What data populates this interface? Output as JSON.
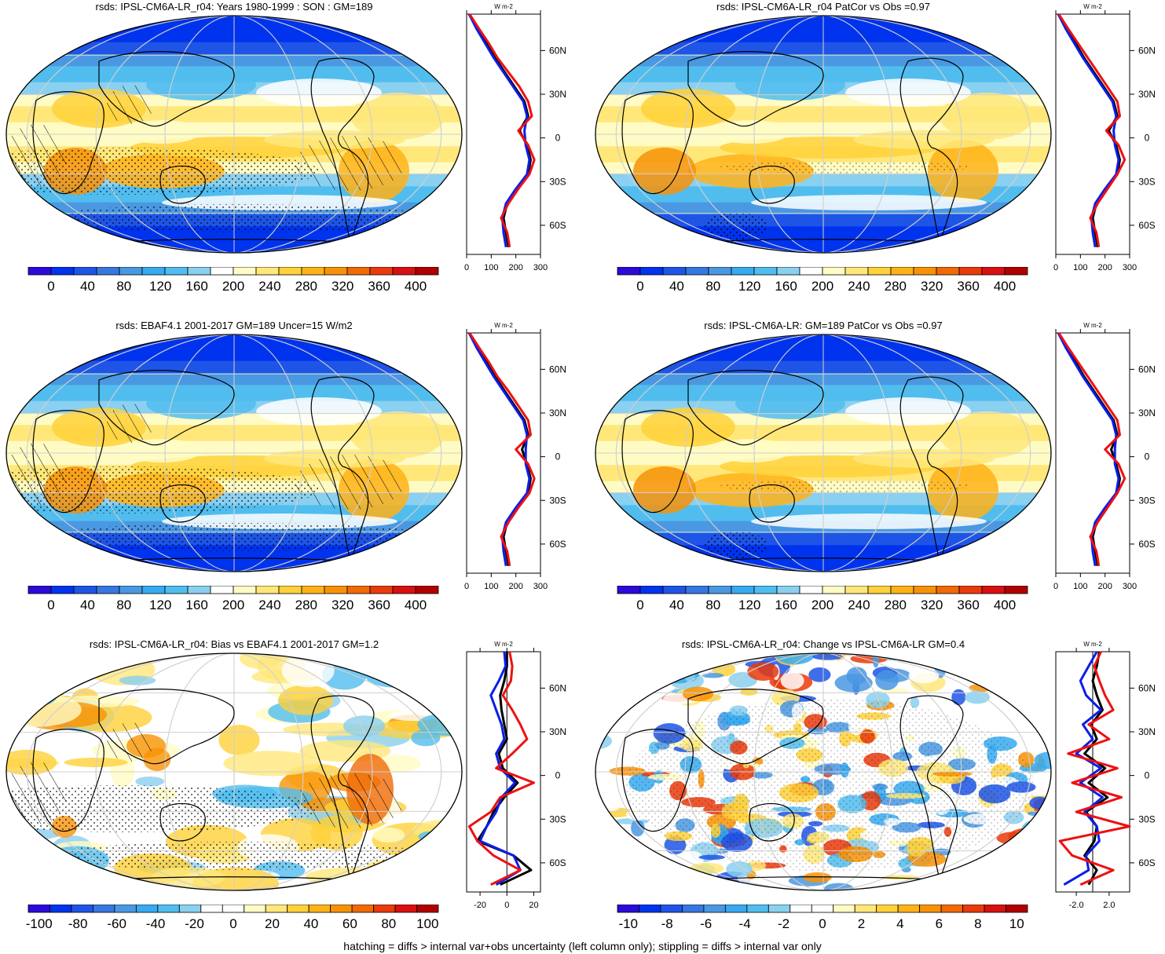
{
  "colors": {
    "main_scale": [
      "#2a0bd9",
      "#0033ee",
      "#1f55e6",
      "#3777e0",
      "#4a98e2",
      "#37aaf0",
      "#51bdef",
      "#8ad0f0",
      "#ffffff",
      "#fffbc4",
      "#ffe77a",
      "#ffd13a",
      "#ffb218",
      "#f79208",
      "#f06a06",
      "#ea3a0c",
      "#d81010",
      "#b00000"
    ],
    "diff_scale": [
      "#2a0bd9",
      "#0033ee",
      "#1f55e6",
      "#3777e0",
      "#4a98e2",
      "#37aaf0",
      "#51bdef",
      "#8ad0f0",
      "#ffffff",
      "#ffffff",
      "#fffbc4",
      "#ffe77a",
      "#ffd13a",
      "#ffb218",
      "#f79208",
      "#f06a06",
      "#ea3a0c",
      "#d81010",
      "#b00000"
    ],
    "model_line": "#000000",
    "obs_line": "#0a1ee8",
    "other_line": "#ee1111"
  },
  "footer": "hatching = diffs > internal var+obs uncertainty (left column only); stippling = diffs > internal var only",
  "panels": [
    {
      "title": "rsds: IPSL-CM6A-LR_r04: Years 1980-1999 : SON : GM=189",
      "colorbar_labels": [
        "0",
        "40",
        "80",
        "120",
        "160",
        "200",
        "240",
        "280",
        "320",
        "360",
        "400"
      ],
      "kind": "main",
      "map_style": "hatched"
    },
    {
      "title": "rsds: IPSL-CM6A-LR_r04 PatCor vs Obs =0.97",
      "colorbar_labels": [
        "0",
        "40",
        "80",
        "120",
        "160",
        "200",
        "240",
        "280",
        "320",
        "360",
        "400"
      ],
      "kind": "main",
      "map_style": "smooth"
    },
    {
      "title": "rsds: EBAF4.1 2001-2017 GM=189 Uncer=15 W/m2",
      "colorbar_labels": [
        "0",
        "40",
        "80",
        "120",
        "160",
        "200",
        "240",
        "280",
        "320",
        "360",
        "400"
      ],
      "kind": "main",
      "map_style": "hatched"
    },
    {
      "title": "rsds: IPSL-CM6A-LR: GM=189 PatCor vs Obs =0.97",
      "colorbar_labels": [
        "0",
        "40",
        "80",
        "120",
        "160",
        "200",
        "240",
        "280",
        "320",
        "360",
        "400"
      ],
      "kind": "main",
      "map_style": "smooth"
    },
    {
      "title": "rsds: IPSL-CM6A-LR_r04: Bias vs EBAF4.1 2001-2017  GM=1.2",
      "colorbar_labels": [
        "-100",
        "-80",
        "-60",
        "-40",
        "-20",
        "0",
        "20",
        "40",
        "60",
        "80",
        "100"
      ],
      "kind": "diff",
      "map_style": "bias"
    },
    {
      "title": "rsds: IPSL-CM6A-LR_r04: Change vs IPSL-CM6A-LR GM=0.4",
      "colorbar_labels": [
        "-10",
        "-8",
        "-6",
        "-4",
        "-2",
        "0",
        "2",
        "4",
        "6",
        "8",
        "10"
      ],
      "kind": "diff",
      "map_style": "change"
    }
  ],
  "chart_data": [
    {
      "type": "line",
      "panel": 0,
      "xlabel": "W m-2",
      "x_ticks": [
        "0",
        "100",
        "200",
        "300"
      ],
      "xlim": [
        0,
        300
      ],
      "ylim": [
        -80,
        85
      ],
      "y_ticks": [
        "60N",
        "30N",
        "0",
        "30S",
        "60S"
      ],
      "lat": [
        85,
        75,
        65,
        55,
        45,
        35,
        25,
        15,
        5,
        -5,
        -15,
        -25,
        -35,
        -45,
        -55,
        -65,
        -75
      ],
      "series": [
        {
          "name": "model",
          "color": "#000000",
          "values": [
            10,
            45,
            80,
            115,
            155,
            195,
            235,
            250,
            215,
            245,
            260,
            250,
            205,
            165,
            150,
            160,
            170
          ]
        },
        {
          "name": "obs",
          "color": "#0a1ee8",
          "values": [
            10,
            40,
            75,
            110,
            150,
            190,
            230,
            245,
            235,
            240,
            255,
            245,
            200,
            160,
            145,
            150,
            160
          ]
        },
        {
          "name": "other",
          "color": "#ee1111",
          "values": [
            12,
            50,
            90,
            125,
            170,
            215,
            250,
            265,
            210,
            250,
            275,
            255,
            210,
            170,
            140,
            165,
            175
          ]
        }
      ]
    },
    {
      "type": "line",
      "panel": 1,
      "xlabel": "W m-2",
      "x_ticks": [
        "0",
        "100",
        "200",
        "300"
      ],
      "xlim": [
        0,
        300
      ],
      "ylim": [
        -80,
        85
      ],
      "y_ticks": [
        "60N",
        "30N",
        "0",
        "30S",
        "60S"
      ],
      "lat": [
        85,
        75,
        65,
        55,
        45,
        35,
        25,
        15,
        5,
        -5,
        -15,
        -25,
        -35,
        -45,
        -55,
        -65,
        -75
      ],
      "series": [
        {
          "name": "model",
          "color": "#000000",
          "values": [
            10,
            45,
            80,
            115,
            155,
            195,
            235,
            250,
            215,
            245,
            260,
            250,
            205,
            165,
            150,
            160,
            170
          ]
        },
        {
          "name": "obs",
          "color": "#0a1ee8",
          "values": [
            10,
            40,
            75,
            110,
            150,
            190,
            230,
            245,
            235,
            240,
            255,
            245,
            200,
            160,
            145,
            150,
            160
          ]
        },
        {
          "name": "other",
          "color": "#ee1111",
          "values": [
            12,
            50,
            90,
            130,
            170,
            210,
            250,
            260,
            205,
            255,
            280,
            250,
            210,
            170,
            140,
            165,
            175
          ]
        }
      ]
    },
    {
      "type": "line",
      "panel": 2,
      "xlabel": "W m-2",
      "x_ticks": [
        "0",
        "100",
        "200",
        "300"
      ],
      "xlim": [
        0,
        300
      ],
      "ylim": [
        -80,
        85
      ],
      "y_ticks": [
        "60N",
        "30N",
        "0",
        "30S",
        "60S"
      ],
      "lat": [
        85,
        75,
        65,
        55,
        45,
        35,
        25,
        15,
        5,
        -5,
        -15,
        -25,
        -35,
        -45,
        -55,
        -65,
        -75
      ],
      "series": [
        {
          "name": "model",
          "color": "#000000",
          "values": [
            10,
            45,
            80,
            115,
            155,
            195,
            235,
            250,
            225,
            245,
            260,
            250,
            205,
            165,
            150,
            160,
            170
          ]
        },
        {
          "name": "obs",
          "color": "#0a1ee8",
          "values": [
            10,
            40,
            75,
            110,
            150,
            190,
            230,
            245,
            240,
            240,
            255,
            245,
            200,
            160,
            145,
            150,
            160
          ]
        },
        {
          "name": "other",
          "color": "#ee1111",
          "values": [
            12,
            50,
            90,
            125,
            170,
            210,
            250,
            260,
            200,
            250,
            275,
            255,
            210,
            170,
            140,
            165,
            175
          ]
        }
      ]
    },
    {
      "type": "line",
      "panel": 3,
      "xlabel": "W m-2",
      "x_ticks": [
        "0",
        "100",
        "200",
        "300"
      ],
      "xlim": [
        0,
        300
      ],
      "ylim": [
        -80,
        85
      ],
      "y_ticks": [
        "60N",
        "30N",
        "0",
        "30S",
        "60S"
      ],
      "lat": [
        85,
        75,
        65,
        55,
        45,
        35,
        25,
        15,
        5,
        -5,
        -15,
        -25,
        -35,
        -45,
        -55,
        -65,
        -75
      ],
      "series": [
        {
          "name": "model",
          "color": "#000000",
          "values": [
            10,
            45,
            80,
            115,
            155,
            195,
            235,
            250,
            225,
            245,
            260,
            250,
            205,
            165,
            150,
            160,
            170
          ]
        },
        {
          "name": "obs",
          "color": "#0a1ee8",
          "values": [
            10,
            40,
            75,
            110,
            150,
            190,
            230,
            245,
            240,
            240,
            255,
            245,
            200,
            160,
            145,
            150,
            160
          ]
        },
        {
          "name": "other",
          "color": "#ee1111",
          "values": [
            12,
            50,
            90,
            130,
            170,
            210,
            250,
            260,
            200,
            255,
            280,
            250,
            210,
            170,
            140,
            165,
            175
          ]
        }
      ]
    },
    {
      "type": "line",
      "panel": 4,
      "xlabel": "W m-2",
      "x_ticks": [
        "-20",
        "0",
        "20"
      ],
      "xlim": [
        -30,
        25
      ],
      "ylim": [
        -80,
        85
      ],
      "y_ticks": [
        "60N",
        "30N",
        "0",
        "30S",
        "60S"
      ],
      "lat": [
        85,
        75,
        65,
        55,
        45,
        35,
        25,
        15,
        5,
        -5,
        -15,
        -25,
        -35,
        -45,
        -55,
        -65,
        -75
      ],
      "series": [
        {
          "name": "model",
          "color": "#000000",
          "values": [
            0,
            0,
            -2,
            -5,
            -4,
            -2,
            0,
            -6,
            -3,
            8,
            -2,
            -10,
            -15,
            -22,
            5,
            18,
            -5
          ]
        },
        {
          "name": "obs",
          "color": "#0a1ee8",
          "values": [
            -2,
            -1,
            -6,
            -12,
            -8,
            -4,
            -2,
            -8,
            -5,
            6,
            -4,
            -8,
            -15,
            -20,
            5,
            10,
            -8
          ]
        },
        {
          "name": "other",
          "color": "#ee1111",
          "values": [
            2,
            4,
            3,
            -3,
            4,
            10,
            15,
            4,
            -8,
            20,
            -5,
            -12,
            -28,
            -22,
            -10,
            10,
            -12
          ]
        }
      ]
    },
    {
      "type": "line",
      "panel": 5,
      "xlabel": "W m-2",
      "x_ticks": [
        "-2.0",
        "2.0"
      ],
      "xlim": [
        -4.5,
        4.5
      ],
      "ylim": [
        -80,
        85
      ],
      "y_ticks": [
        "60N",
        "30N",
        "0",
        "30S",
        "60S"
      ],
      "lat": [
        85,
        75,
        65,
        55,
        45,
        35,
        25,
        15,
        5,
        -5,
        -15,
        -25,
        -35,
        -45,
        -55,
        -65,
        -75
      ],
      "series": [
        {
          "name": "model",
          "color": "#000000",
          "values": [
            0.8,
            0.5,
            0,
            0.5,
            1.2,
            -0.2,
            0.5,
            -1.0,
            1.5,
            -0.5,
            1.8,
            -0.8,
            0.5,
            0.2,
            -1.0,
            0.5,
            -0.5
          ]
        },
        {
          "name": "obs",
          "color": "#0a1ee8",
          "values": [
            0.5,
            -0.5,
            -1.5,
            -0.8,
            1.0,
            -1.2,
            0,
            -2.0,
            1.0,
            -1.5,
            1.2,
            -1.0,
            0.5,
            0.8,
            -0.8,
            -0.5,
            -3.5
          ]
        },
        {
          "name": "other",
          "color": "#ee1111",
          "values": [
            1.0,
            0.2,
            0.8,
            1.5,
            2.5,
            -0.5,
            2.0,
            -3.0,
            3.0,
            -2.5,
            3.5,
            -2.0,
            4.5,
            -4.0,
            -2.5,
            2.5,
            -1.5
          ]
        }
      ]
    }
  ]
}
